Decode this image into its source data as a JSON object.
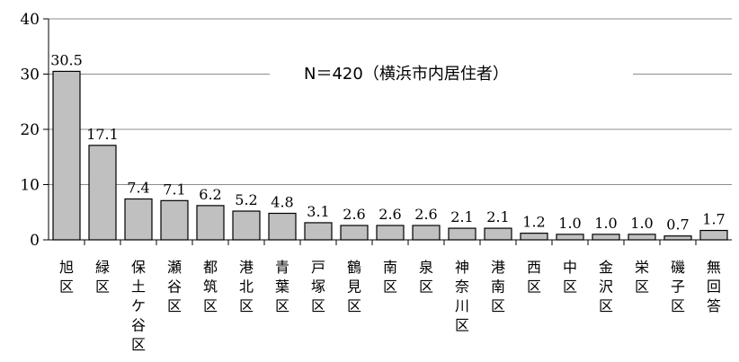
{
  "chart_data": {
    "type": "bar",
    "categories": [
      "旭区",
      "緑区",
      "保土ケ谷区",
      "瀬谷区",
      "都筑区",
      "港北区",
      "青葉区",
      "戸塚区",
      "鶴見区",
      "南区",
      "泉区",
      "神奈川区",
      "港南区",
      "西区",
      "中区",
      "金沢区",
      "栄区",
      "磯子区",
      "無回答"
    ],
    "values": [
      30.5,
      17.1,
      7.4,
      7.1,
      6.2,
      5.2,
      4.8,
      3.1,
      2.6,
      2.6,
      2.6,
      2.1,
      2.1,
      1.2,
      1.0,
      1.0,
      1.0,
      0.7,
      1.7
    ],
    "value_labels": [
      "30.5",
      "17.1",
      "7.4",
      "7.1",
      "6.2",
      "5.2",
      "4.8",
      "3.1",
      "2.6",
      "2.6",
      "2.6",
      "2.1",
      "2.1",
      "1.2",
      "1.0",
      "1.0",
      "1.0",
      "0.7",
      "1.7"
    ],
    "ylim": [
      0,
      40
    ],
    "yticks": [
      "0",
      "10",
      "20",
      "30",
      "40"
    ],
    "grid": true,
    "annotation": "N＝420（横浜市内居住者）",
    "bar_color": "#c0c0c0",
    "title": "",
    "xlabel": "",
    "ylabel": ""
  }
}
